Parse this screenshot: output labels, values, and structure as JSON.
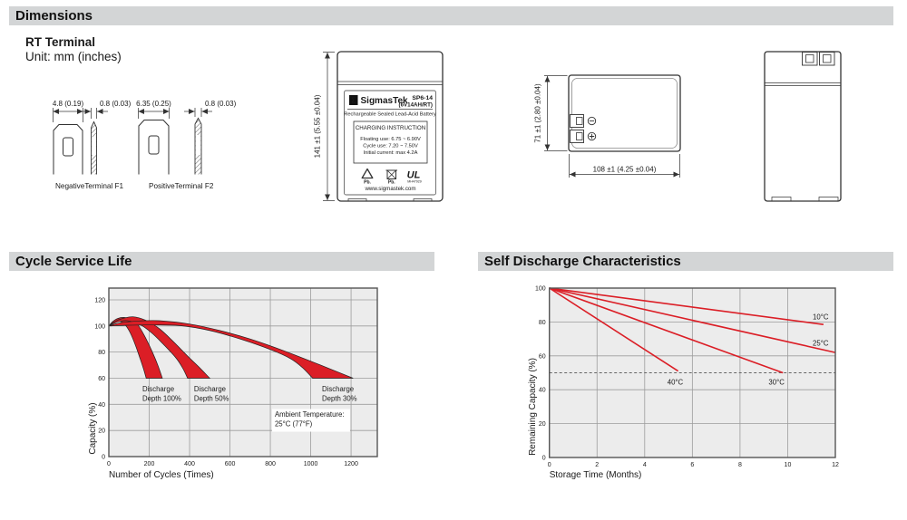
{
  "colors": {
    "header_bg": "#d3d5d6",
    "red": "#db1e26",
    "grid": "#9c9c9c",
    "plot_bg": "#ececec"
  },
  "headers": {
    "dimensions": "Dimensions",
    "cycle": "Cycle Service Life",
    "self_discharge": "Self Discharge Characteristics"
  },
  "dimensions_section": {
    "subtitle": "RT Terminal",
    "unit_note": "Unit: mm (inches)",
    "negative_terminal": {
      "width_dim": "4.8 (0.19)",
      "thickness_dim": "0.8 (0.03)",
      "caption": "NegativeTerminal F1"
    },
    "positive_terminal": {
      "width_dim": "6.35 (0.25)",
      "thickness_dim": "0.8 (0.03)",
      "caption": "PositiveTerminal F2"
    },
    "front_view": {
      "height_dim": "141 ±1 (5.55 ±0.04)"
    },
    "top_view": {
      "height_dim": "71 ±1 (2.80 ±0.04)",
      "width_dim": "108 ±1 (4.25 ±0.04)"
    },
    "label": {
      "logo_glyph": "Σ",
      "brand": "SigmasTek",
      "model": "SP6-14",
      "model_sub": "(6V14AH/RT)",
      "type_line": "Rechargeable Sealed Lead-Acid Battery",
      "charging_title": "CHARGING INSTRUCTION",
      "charging_lines": [
        "Floating use: 6.75 ~ 6.90V",
        "Cycle use: 7.20 ~ 7.50V",
        "Initial current: max 4.2A"
      ],
      "pb_recycle": "Pb.",
      "pb_bin": "Pb.",
      "ul_mark": "UL",
      "ul_code": "MH47929",
      "website": "www.sigmastek.com"
    }
  },
  "chart_data": [
    {
      "type": "area",
      "title": "Cycle Service Life",
      "xlabel": "Number of Cycles (Times)",
      "ylabel": "Capacity (%)",
      "xlim": [
        0,
        1330
      ],
      "ylim": [
        0,
        129
      ],
      "xticks": [
        0,
        200,
        400,
        600,
        800,
        1000,
        1200
      ],
      "yticks": [
        0,
        20,
        40,
        60,
        80,
        100,
        120
      ],
      "grid": true,
      "legend": "none",
      "band_color": "#db1e26",
      "bands": [
        {
          "name": "Discharge Depth 100%",
          "upper": [
            [
              0,
              100
            ],
            [
              20,
              103.5
            ],
            [
              45,
              105.8
            ],
            [
              75,
              106.5
            ],
            [
              105,
              105.3
            ],
            [
              140,
              101.5
            ],
            [
              175,
              93
            ],
            [
              210,
              82
            ],
            [
              240,
              71
            ],
            [
              265,
              60
            ]
          ],
          "lower": [
            [
              0,
              100
            ],
            [
              15,
              102
            ],
            [
              35,
              103.3
            ],
            [
              55,
              103.5
            ],
            [
              80,
              101
            ],
            [
              105,
              95
            ],
            [
              130,
              86
            ],
            [
              155,
              75
            ],
            [
              172,
              67
            ],
            [
              185,
              60
            ]
          ]
        },
        {
          "name": "Discharge Depth 50%",
          "upper": [
            [
              0,
              100
            ],
            [
              30,
              103.5
            ],
            [
              70,
              105.8
            ],
            [
              120,
              107
            ],
            [
              180,
              104.5
            ],
            [
              250,
              98
            ],
            [
              320,
              88
            ],
            [
              390,
              77
            ],
            [
              450,
              68
            ],
            [
              500,
              60
            ]
          ],
          "lower": [
            [
              0,
              100
            ],
            [
              25,
              102
            ],
            [
              55,
              103.5
            ],
            [
              90,
              104
            ],
            [
              150,
              101.5
            ],
            [
              210,
              95
            ],
            [
              270,
              86
            ],
            [
              330,
              76
            ],
            [
              365,
              68
            ],
            [
              390,
              60
            ]
          ]
        },
        {
          "name": "Discharge Depth 30%",
          "upper": [
            [
              0,
              100
            ],
            [
              60,
              102.5
            ],
            [
              150,
              103.8
            ],
            [
              250,
              104
            ],
            [
              400,
              101.5
            ],
            [
              550,
              96.5
            ],
            [
              700,
              90
            ],
            [
              850,
              82
            ],
            [
              1050,
              70
            ],
            [
              1210,
              60
            ]
          ],
          "lower": [
            [
              0,
              100
            ],
            [
              80,
              100.5
            ],
            [
              200,
              100.8
            ],
            [
              350,
              100.3
            ],
            [
              500,
              96.5
            ],
            [
              650,
              90
            ],
            [
              800,
              82
            ],
            [
              900,
              75
            ],
            [
              960,
              68
            ],
            [
              1010,
              60
            ]
          ]
        }
      ],
      "annotations": [
        {
          "lines": [
            "Discharge",
            "Depth 100%"
          ],
          "x": 166,
          "y": 50,
          "bg": false
        },
        {
          "lines": [
            "Discharge",
            "Depth 50%"
          ],
          "x": 422,
          "y": 50,
          "bg": false
        },
        {
          "lines": [
            "Discharge",
            "Depth 30%"
          ],
          "x": 1056,
          "y": 50,
          "bg": false
        },
        {
          "lines": [
            "Ambient Temperature:",
            "25°C (77°F)"
          ],
          "x": 822,
          "y": 30.5,
          "bg": true
        }
      ]
    },
    {
      "type": "line",
      "title": "Self Discharge Characteristics",
      "xlabel": "Storage Time (Months)",
      "ylabel": "Remaining Capacity (%)",
      "xlim": [
        0,
        12
      ],
      "ylim": [
        0,
        100
      ],
      "xticks": [
        0,
        2,
        4,
        6,
        8,
        10,
        12
      ],
      "yticks": [
        0,
        20,
        40,
        60,
        80,
        100
      ],
      "grid": true,
      "legend": "inline-labels",
      "line_color": "#db1e26",
      "reference_line": {
        "y": 50,
        "style": "dashed"
      },
      "series": [
        {
          "name": "10°C",
          "points": [
            [
              0,
              100
            ],
            [
              11.5,
              78.5
            ]
          ],
          "label_pos": [
            11.05,
            81.5
          ]
        },
        {
          "name": "25°C",
          "points": [
            [
              0,
              100
            ],
            [
              12,
              62
            ]
          ],
          "label_pos": [
            11.05,
            66
          ]
        },
        {
          "name": "30°C",
          "points": [
            [
              0,
              100
            ],
            [
              9.8,
              50
            ]
          ],
          "label_pos": [
            9.2,
            43
          ]
        },
        {
          "name": "40°C",
          "points": [
            [
              0,
              100
            ],
            [
              5.4,
              51
            ]
          ],
          "label_pos": [
            4.95,
            43
          ]
        }
      ]
    }
  ]
}
